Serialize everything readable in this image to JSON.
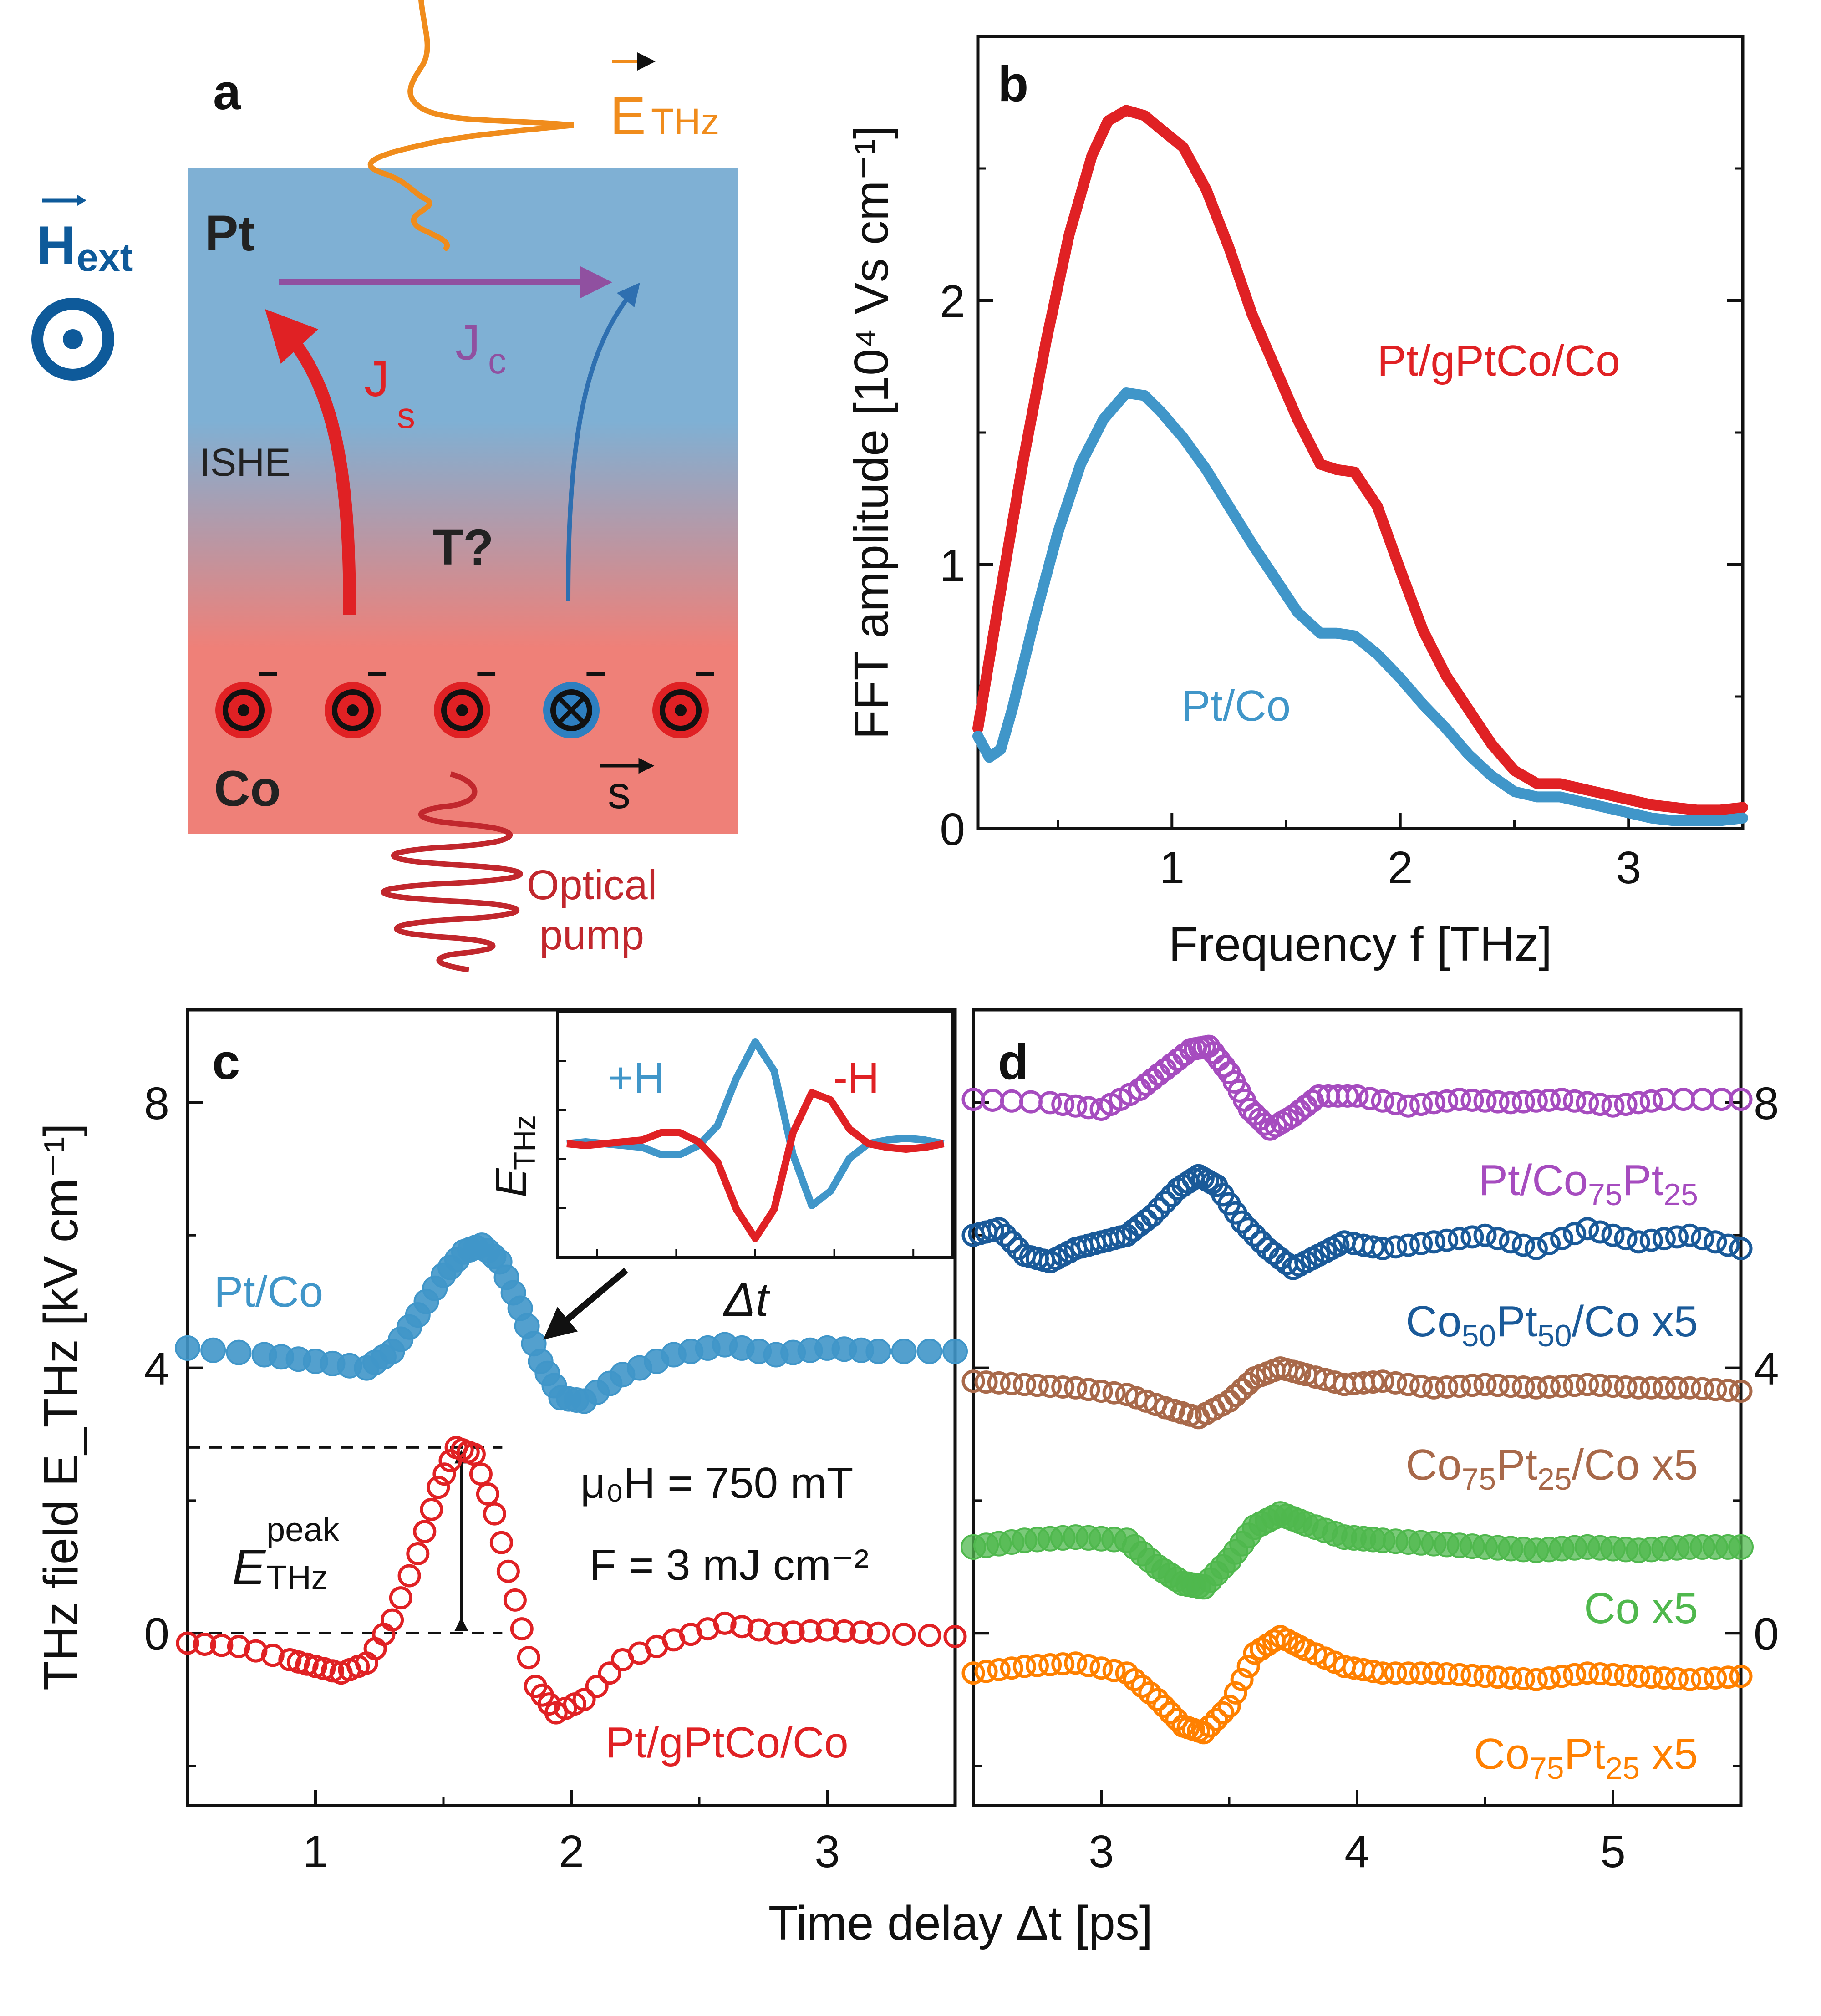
{
  "colors": {
    "pt_co": "#4096c9",
    "pt_gptco_co": "#e02124",
    "co75pt25_pt": "#a64cbf",
    "co50pt50_co": "#1a5a99",
    "co75pt25_co": "#a8694a",
    "co": "#4fb84d",
    "co75pt25": "#ff8000",
    "etwz_arrow": "#f08c1c",
    "jc_arrow": "#9050a0",
    "hext": "#0e5a9a",
    "pump": "#c1272d",
    "top_gradient": "#7fb0d4",
    "bottom_gradient": "#ef8078"
  },
  "panel_a": {
    "letter": "a",
    "e_thz": "E",
    "e_thz_sub": "THz",
    "h_ext": "H",
    "h_ext_sub": "ext",
    "pt": "Pt",
    "co": "Co",
    "jc": "J",
    "jc_sub": "c",
    "js": "J",
    "js_sub": "s",
    "ishe": "ISHE",
    "t_question": "T?",
    "spin": "s",
    "minus": "–",
    "pump_line1": "Optical",
    "pump_line2": "pump"
  },
  "panel_b_labels": {
    "letter": "b"
  },
  "panel_c_labels": {
    "letter": "c",
    "peak_symbol": "E",
    "peak_sup": "peak",
    "peak_sub": "THz",
    "field": "μ₀H = 750 mT",
    "fluence": "F = 3 mJ cm⁻²",
    "inset_ylabel": "E",
    "inset_ylabel_sub": "THz",
    "inset_xlabel": "Δt",
    "inset_plus": "+H",
    "inset_minus": "-H"
  },
  "panel_d_labels": {
    "letter": "d"
  },
  "chart_data": [
    {
      "id": "b",
      "type": "line",
      "xlabel": "Frequency f [THz]",
      "ylabel": "FFT amplitude [10⁴ Vs cm⁻¹]",
      "xlim": [
        0.15,
        3.5
      ],
      "ylim": [
        0,
        3.0
      ],
      "xticks": [
        1,
        2,
        3
      ],
      "yticks": [
        0,
        1,
        2
      ],
      "series": [
        {
          "name": "Pt/gPtCo/Co",
          "color": "#e02124",
          "x": [
            0.15,
            0.25,
            0.35,
            0.45,
            0.55,
            0.65,
            0.72,
            0.8,
            0.88,
            0.95,
            1.05,
            1.15,
            1.25,
            1.35,
            1.45,
            1.55,
            1.65,
            1.72,
            1.8,
            1.9,
            2.0,
            2.1,
            2.2,
            2.3,
            2.4,
            2.5,
            2.6,
            2.7,
            2.8,
            2.9,
            3.0,
            3.1,
            3.2,
            3.3,
            3.4,
            3.5
          ],
          "y": [
            0.38,
            0.9,
            1.4,
            1.85,
            2.25,
            2.55,
            2.68,
            2.72,
            2.7,
            2.65,
            2.58,
            2.42,
            2.2,
            1.95,
            1.75,
            1.55,
            1.38,
            1.36,
            1.35,
            1.22,
            0.98,
            0.75,
            0.58,
            0.45,
            0.32,
            0.22,
            0.17,
            0.17,
            0.15,
            0.13,
            0.11,
            0.09,
            0.08,
            0.07,
            0.07,
            0.08
          ]
        },
        {
          "name": "Pt/Co",
          "color": "#4096c9",
          "x": [
            0.15,
            0.2,
            0.25,
            0.3,
            0.4,
            0.5,
            0.6,
            0.7,
            0.8,
            0.88,
            0.95,
            1.05,
            1.15,
            1.25,
            1.35,
            1.45,
            1.55,
            1.65,
            1.72,
            1.8,
            1.9,
            2.0,
            2.1,
            2.2,
            2.3,
            2.4,
            2.5,
            2.6,
            2.7,
            2.8,
            2.9,
            3.0,
            3.1,
            3.2,
            3.3,
            3.4,
            3.5
          ],
          "y": [
            0.35,
            0.27,
            0.3,
            0.45,
            0.8,
            1.12,
            1.38,
            1.55,
            1.65,
            1.64,
            1.58,
            1.48,
            1.36,
            1.22,
            1.08,
            0.95,
            0.82,
            0.74,
            0.74,
            0.73,
            0.66,
            0.57,
            0.47,
            0.38,
            0.28,
            0.2,
            0.14,
            0.12,
            0.12,
            0.1,
            0.08,
            0.06,
            0.04,
            0.03,
            0.03,
            0.03,
            0.04
          ]
        }
      ],
      "annotations": [
        "Pt/gPtCo/Co",
        "Pt/Co"
      ]
    },
    {
      "id": "c",
      "type": "scatter",
      "xlabel": "Time delay Δt [ps]",
      "ylabel": "THz field E_THz [kV cm⁻¹]",
      "xlim": [
        0.5,
        3.5
      ],
      "ylim": [
        -2.6,
        9.4
      ],
      "xticks": [
        1,
        2,
        3
      ],
      "yticks": [
        0,
        4,
        8
      ],
      "series": [
        {
          "name": "Pt/Co",
          "color": "#4096c9",
          "marker": "filled-circle",
          "x": [
            0.5,
            0.8,
            1.0,
            1.2,
            1.3,
            1.4,
            1.5,
            1.58,
            1.65,
            1.72,
            1.8,
            1.88,
            1.96,
            2.05,
            2.2,
            2.4,
            2.6,
            2.8,
            3.0,
            3.2,
            3.5
          ],
          "y": [
            4.3,
            4.2,
            4.1,
            4.0,
            4.25,
            4.8,
            5.4,
            5.75,
            5.85,
            5.6,
            4.9,
            4.1,
            3.55,
            3.5,
            3.9,
            4.2,
            4.35,
            4.2,
            4.3,
            4.25,
            4.25
          ]
        },
        {
          "name": "Pt/gPtCo/Co",
          "color": "#e02124",
          "marker": "open-circle",
          "x": [
            0.5,
            0.7,
            0.9,
            1.0,
            1.1,
            1.2,
            1.3,
            1.4,
            1.48,
            1.55,
            1.62,
            1.7,
            1.78,
            1.86,
            1.94,
            2.05,
            2.2,
            2.4,
            2.6,
            2.8,
            3.0,
            3.2,
            3.5
          ],
          "y": [
            -0.15,
            -0.2,
            -0.4,
            -0.5,
            -0.6,
            -0.45,
            0.2,
            1.2,
            2.2,
            2.8,
            2.7,
            1.8,
            0.5,
            -0.8,
            -1.2,
            -1.0,
            -0.4,
            -0.1,
            0.15,
            0.0,
            0.05,
            0.0,
            -0.05
          ]
        }
      ],
      "annotations": [
        "Pt/Co",
        "Pt/gPtCo/Co"
      ],
      "peak_marker": {
        "x": 1.57,
        "y_from": 0,
        "y_to": 2.8
      },
      "inset": {
        "series": [
          {
            "name": "+H",
            "color": "#4096c9",
            "y": [
              0.0,
              0.05,
              0.0,
              -0.05,
              -0.1,
              -0.3,
              -0.3,
              -0.05,
              0.5,
              1.8,
              2.8,
              2.0,
              -0.3,
              -1.7,
              -1.3,
              -0.4,
              0.0,
              0.1,
              0.15,
              0.1,
              0.0
            ]
          },
          {
            "name": "-H",
            "color": "#e02124",
            "y": [
              0.0,
              -0.05,
              0.0,
              0.05,
              0.1,
              0.3,
              0.3,
              0.05,
              -0.5,
              -1.8,
              -2.6,
              -1.8,
              0.3,
              1.4,
              1.2,
              0.4,
              0.0,
              -0.1,
              -0.15,
              -0.1,
              0.0
            ]
          }
        ]
      }
    },
    {
      "id": "d",
      "type": "scatter",
      "xlabel": "Time delay Δt [ps]",
      "xlim": [
        2.5,
        5.5
      ],
      "ylim": [
        -2.6,
        9.4
      ],
      "xticks": [
        3,
        4,
        5
      ],
      "yticks": [
        0,
        4,
        8
      ],
      "series": [
        {
          "name": "Pt/Co75Pt25",
          "color": "#a64cbf",
          "marker": "open-circle",
          "x": [
            2.5,
            2.8,
            3.0,
            3.15,
            3.25,
            3.35,
            3.42,
            3.5,
            3.58,
            3.66,
            3.75,
            3.85,
            4.0,
            4.2,
            4.4,
            4.6,
            4.8,
            5.0,
            5.2,
            5.5
          ],
          "y": [
            8.05,
            8.0,
            7.9,
            8.2,
            8.5,
            8.8,
            8.85,
            8.45,
            7.9,
            7.6,
            7.8,
            8.1,
            8.1,
            7.95,
            8.05,
            8.0,
            8.05,
            7.95,
            8.05,
            8.05
          ]
        },
        {
          "name": "Co50Pt50/Co x5",
          "color": "#1a5a99",
          "marker": "open-circle",
          "x": [
            2.5,
            2.6,
            2.7,
            2.8,
            2.9,
            3.0,
            3.1,
            3.2,
            3.3,
            3.38,
            3.45,
            3.55,
            3.65,
            3.75,
            3.85,
            3.95,
            4.1,
            4.3,
            4.5,
            4.7,
            4.9,
            5.1,
            5.3,
            5.5
          ],
          "y": [
            6.0,
            6.1,
            5.7,
            5.6,
            5.8,
            5.9,
            6.0,
            6.3,
            6.7,
            6.9,
            6.75,
            6.2,
            5.8,
            5.5,
            5.7,
            5.9,
            5.8,
            5.9,
            6.0,
            5.8,
            6.1,
            5.9,
            6.0,
            5.8
          ]
        },
        {
          "name": "Co75Pt25/Co x5",
          "color": "#a8694a",
          "marker": "open-circle",
          "x": [
            2.5,
            2.7,
            2.9,
            3.1,
            3.25,
            3.38,
            3.5,
            3.6,
            3.7,
            3.8,
            3.95,
            4.1,
            4.3,
            4.5,
            4.7,
            4.9,
            5.1,
            5.3,
            5.5
          ],
          "y": [
            3.8,
            3.75,
            3.7,
            3.6,
            3.4,
            3.25,
            3.5,
            3.85,
            4.0,
            3.9,
            3.75,
            3.8,
            3.7,
            3.75,
            3.7,
            3.75,
            3.7,
            3.7,
            3.65
          ]
        },
        {
          "name": "Co x5",
          "color": "#4fb84d",
          "marker": "filled-circle",
          "x": [
            2.5,
            2.7,
            2.9,
            3.1,
            3.22,
            3.32,
            3.4,
            3.5,
            3.6,
            3.7,
            3.8,
            3.95,
            4.1,
            4.3,
            4.5,
            4.7,
            4.9,
            5.1,
            5.3,
            5.5
          ],
          "y": [
            1.3,
            1.4,
            1.45,
            1.4,
            1.0,
            0.75,
            0.7,
            1.1,
            1.6,
            1.8,
            1.65,
            1.45,
            1.4,
            1.35,
            1.3,
            1.25,
            1.3,
            1.25,
            1.3,
            1.3
          ]
        },
        {
          "name": "Co75Pt25 x5",
          "color": "#ff8000",
          "marker": "open-circle",
          "x": [
            2.5,
            2.7,
            2.9,
            3.1,
            3.22,
            3.32,
            3.4,
            3.5,
            3.6,
            3.7,
            3.8,
            3.95,
            4.1,
            4.3,
            4.5,
            4.7,
            4.9,
            5.1,
            5.3,
            5.5
          ],
          "y": [
            -0.6,
            -0.5,
            -0.45,
            -0.6,
            -1.0,
            -1.4,
            -1.5,
            -1.1,
            -0.3,
            -0.05,
            -0.25,
            -0.5,
            -0.6,
            -0.6,
            -0.65,
            -0.7,
            -0.6,
            -0.65,
            -0.7,
            -0.65
          ]
        }
      ],
      "annotations": [
        "Pt/Co75Pt25",
        "Co50Pt50/Co x5",
        "Co75Pt25/Co x5",
        "Co x5",
        "Co75Pt25 x5"
      ],
      "label_parts": {
        "pt_co75pt25": {
          "a": "Pt/Co",
          "s1": "75",
          "b": "Pt",
          "s2": "25",
          "c": ""
        },
        "co50pt50_co": {
          "a": "Co",
          "s1": "50",
          "b": "Pt",
          "s2": "50",
          "c": "/Co x5"
        },
        "co75pt25_co": {
          "a": "Co",
          "s1": "75",
          "b": "Pt",
          "s2": "25",
          "c": "/Co x5"
        },
        "co": {
          "a": "Co x5"
        },
        "co75pt25": {
          "a": "Co",
          "s1": "75",
          "b": "Pt",
          "s2": "25",
          "c": " x5"
        }
      }
    }
  ]
}
